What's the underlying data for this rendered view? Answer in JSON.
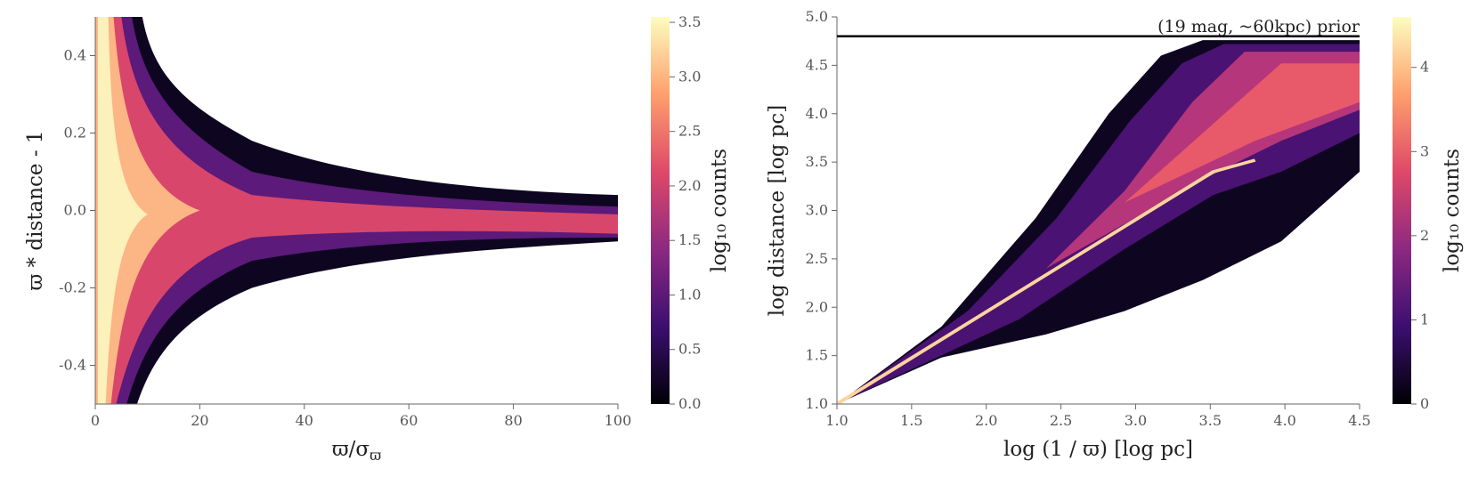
{
  "chart_data": [
    {
      "type": "hist2d",
      "xlabel": "ϖ/σ",
      "xlabel_sub": "ϖ",
      "ylabel": "ϖ * distance - 1",
      "xlim": [
        0,
        100
      ],
      "xticks": [
        0,
        20,
        40,
        60,
        80,
        100
      ],
      "ylim": [
        -0.5,
        0.5
      ],
      "yticks": [
        -0.4,
        -0.2,
        {
          "value": 0,
          "label": "0.0"
        },
        0.2,
        0.4
      ],
      "colorbar": {
        "label": "log₁₀ counts",
        "colormap": "magma",
        "lim": [
          0,
          3.55
        ],
        "ticks": [
          {
            "value": 0,
            "label": "0.0"
          },
          0.5,
          {
            "value": 1,
            "label": "1.0"
          },
          1.5,
          {
            "value": 2,
            "label": "2.0"
          },
          2.5,
          {
            "value": 3,
            "label": "3.0"
          },
          3.5
        ]
      }
    },
    {
      "type": "hist2d",
      "xlabel": "log (1 / ϖ) [log pc]",
      "ylabel": "log distance [log pc]",
      "xlim": [
        1,
        4.5
      ],
      "xticks": [
        {
          "value": 1,
          "label": "1.0"
        },
        1.5,
        {
          "value": 2,
          "label": "2.0"
        },
        2.5,
        {
          "value": 3,
          "label": "3.0"
        },
        3.5,
        {
          "value": 4,
          "label": "4.0"
        },
        4.5
      ],
      "ylim": [
        1,
        5
      ],
      "yticks": [
        {
          "value": 1,
          "label": "1.0"
        },
        1.5,
        {
          "value": 2,
          "label": "2.0"
        },
        2.5,
        {
          "value": 3,
          "label": "3.0"
        },
        3.5,
        {
          "value": 4,
          "label": "4.0"
        },
        4.5,
        {
          "value": 5,
          "label": "5.0"
        }
      ],
      "prior_line": 4.8,
      "annotation": "(19 mag, ~60kpc) prior",
      "colorbar": {
        "label": "log₁₀ counts",
        "colormap": "magma",
        "lim": [
          0,
          4.6
        ],
        "ticks": [
          0,
          1,
          2,
          3,
          4
        ]
      }
    }
  ]
}
